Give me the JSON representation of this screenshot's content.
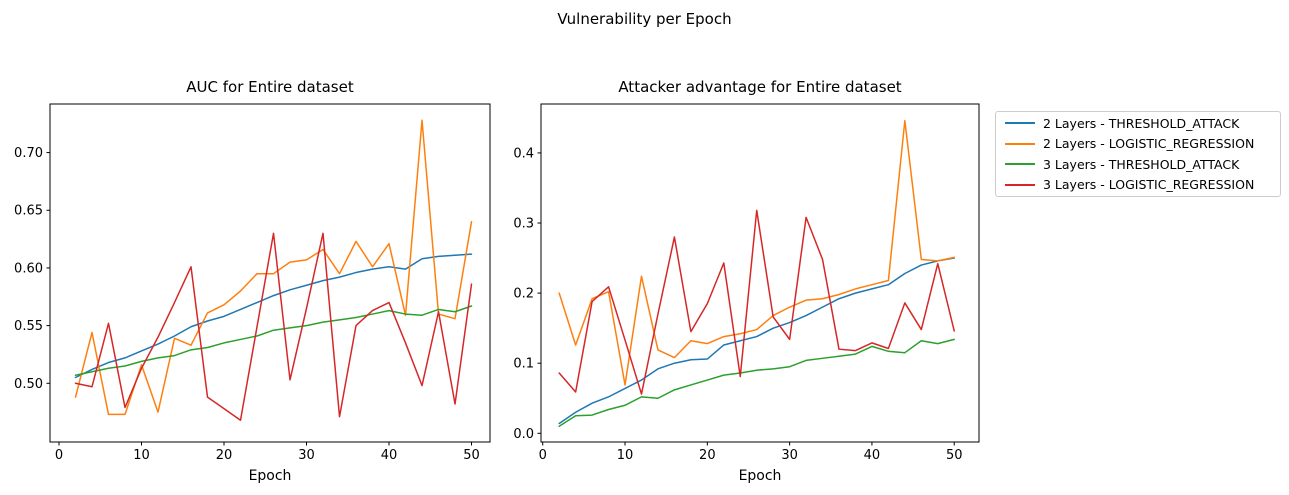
{
  "figure": {
    "suptitle": "Vulnerability per Epoch",
    "background_color": "#ffffff",
    "text_color": "#000000",
    "spine_color": "#000000"
  },
  "legend": {
    "entries": [
      {
        "label": "2 Layers - THRESHOLD_ATTACK",
        "color": "#1f77b4"
      },
      {
        "label": "2 Layers - LOGISTIC_REGRESSION",
        "color": "#ff7f0e"
      },
      {
        "label": "3 Layers - THRESHOLD_ATTACK",
        "color": "#2ca02c"
      },
      {
        "label": "3 Layers - LOGISTIC_REGRESSION",
        "color": "#d62728"
      }
    ]
  },
  "chart_data": [
    {
      "type": "line",
      "title": "AUC for Entire dataset",
      "xlabel": "Epoch",
      "ylabel": "",
      "grid": false,
      "x": [
        2,
        4,
        6,
        8,
        10,
        12,
        14,
        16,
        18,
        20,
        22,
        24,
        26,
        28,
        30,
        32,
        34,
        36,
        38,
        40,
        42,
        44,
        46,
        48,
        50
      ],
      "xlim": [
        -1.09,
        52.24
      ],
      "ylim": [
        0.4491,
        0.7421
      ],
      "xticks": [
        0,
        10,
        20,
        30,
        40,
        50
      ],
      "xtick_labels": [
        "0",
        "10",
        "20",
        "30",
        "40",
        "50"
      ],
      "yticks": [
        0.5,
        0.55,
        0.6,
        0.65,
        0.7
      ],
      "ytick_labels": [
        "0.50",
        "0.55",
        "0.60",
        "0.65",
        "0.70"
      ],
      "series": [
        {
          "name": "2 Layers - THRESHOLD_ATTACK",
          "color": "#1f77b4",
          "values": [
            0.505,
            0.512,
            0.518,
            0.522,
            0.528,
            0.534,
            0.541,
            0.549,
            0.554,
            0.558,
            0.564,
            0.57,
            0.576,
            0.581,
            0.585,
            0.589,
            0.592,
            0.596,
            0.599,
            0.601,
            0.599,
            0.608,
            0.61,
            0.611,
            0.612
          ]
        },
        {
          "name": "2 Layers - LOGISTIC_REGRESSION",
          "color": "#ff7f0e",
          "values": [
            0.488,
            0.544,
            0.473,
            0.473,
            0.516,
            0.475,
            0.539,
            0.533,
            0.561,
            0.568,
            0.58,
            0.595,
            0.595,
            0.605,
            0.607,
            0.616,
            0.595,
            0.623,
            0.601,
            0.621,
            0.559,
            0.728,
            0.56,
            0.556,
            0.64
          ]
        },
        {
          "name": "3 Layers - THRESHOLD_ATTACK",
          "color": "#2ca02c",
          "values": [
            0.507,
            0.51,
            0.513,
            0.515,
            0.519,
            0.522,
            0.524,
            0.529,
            0.531,
            0.535,
            0.538,
            0.541,
            0.546,
            0.548,
            0.55,
            0.553,
            0.555,
            0.557,
            0.56,
            0.563,
            0.56,
            0.559,
            0.564,
            0.562,
            0.567
          ]
        },
        {
          "name": "3 Layers - LOGISTIC_REGRESSION",
          "color": "#d62728",
          "values": [
            0.5,
            0.497,
            0.552,
            0.479,
            0.513,
            0.54,
            0.57,
            0.601,
            0.488,
            0.478,
            0.468,
            0.549,
            0.63,
            0.503,
            0.565,
            0.63,
            0.471,
            0.55,
            0.563,
            0.57,
            0.535,
            0.498,
            0.562,
            0.482,
            0.586
          ]
        }
      ]
    },
    {
      "type": "line",
      "title": "Attacker advantage for Entire dataset",
      "xlabel": "Epoch",
      "ylabel": "",
      "grid": false,
      "x": [
        2,
        4,
        6,
        8,
        10,
        12,
        14,
        16,
        18,
        20,
        22,
        24,
        26,
        28,
        30,
        32,
        34,
        36,
        38,
        40,
        42,
        44,
        46,
        48,
        50
      ],
      "xlim": [
        -0.21,
        53.01
      ],
      "ylim": [
        -0.0124,
        0.4698
      ],
      "xticks": [
        0,
        10,
        20,
        30,
        40,
        50
      ],
      "xtick_labels": [
        "0",
        "10",
        "20",
        "30",
        "40",
        "50"
      ],
      "yticks": [
        0.0,
        0.1,
        0.2,
        0.3,
        0.4
      ],
      "ytick_labels": [
        "0.0",
        "0.1",
        "0.2",
        "0.3",
        "0.4"
      ],
      "series": [
        {
          "name": "2 Layers - THRESHOLD_ATTACK",
          "color": "#1f77b4",
          "values": [
            0.014,
            0.03,
            0.043,
            0.052,
            0.064,
            0.076,
            0.092,
            0.1,
            0.105,
            0.106,
            0.126,
            0.132,
            0.138,
            0.15,
            0.158,
            0.168,
            0.18,
            0.192,
            0.2,
            0.206,
            0.212,
            0.228,
            0.24,
            0.246,
            0.25
          ]
        },
        {
          "name": "2 Layers - LOGISTIC_REGRESSION",
          "color": "#ff7f0e",
          "values": [
            0.2,
            0.126,
            0.192,
            0.202,
            0.069,
            0.224,
            0.119,
            0.108,
            0.132,
            0.128,
            0.138,
            0.142,
            0.148,
            0.168,
            0.18,
            0.19,
            0.192,
            0.198,
            0.206,
            0.212,
            0.218,
            0.446,
            0.248,
            0.246,
            0.251
          ]
        },
        {
          "name": "3 Layers - THRESHOLD_ATTACK",
          "color": "#2ca02c",
          "values": [
            0.01,
            0.025,
            0.026,
            0.034,
            0.04,
            0.052,
            0.05,
            0.062,
            0.069,
            0.076,
            0.083,
            0.086,
            0.09,
            0.092,
            0.095,
            0.104,
            0.107,
            0.11,
            0.113,
            0.124,
            0.117,
            0.115,
            0.132,
            0.128,
            0.134
          ]
        },
        {
          "name": "3 Layers - LOGISTIC_REGRESSION",
          "color": "#d62728",
          "values": [
            0.086,
            0.059,
            0.188,
            0.209,
            0.133,
            0.056,
            0.17,
            0.28,
            0.145,
            0.185,
            0.243,
            0.081,
            0.318,
            0.166,
            0.134,
            0.308,
            0.248,
            0.12,
            0.118,
            0.129,
            0.121,
            0.186,
            0.148,
            0.242,
            0.146
          ]
        }
      ]
    }
  ]
}
